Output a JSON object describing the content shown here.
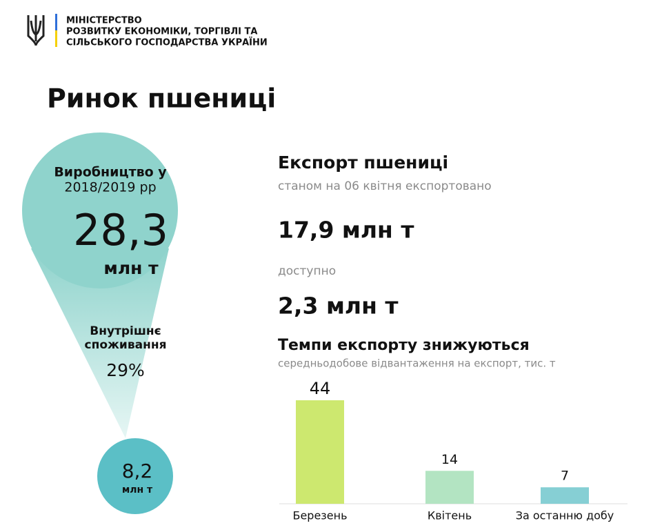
{
  "header": {
    "lines": [
      "МІНІСТЕРСТВО",
      "РОЗВИТКУ ЕКОНОМІКИ, ТОРГІВЛІ ТА",
      "СІЛЬСЬКОГО ГОСПОДАРСТВА УКРАЇНИ"
    ]
  },
  "title": "Ринок пшениці",
  "left": {
    "production_label": [
      "Виробництво у",
      "2018/2019 рр"
    ],
    "production_value": "28,3",
    "production_unit": "млн т",
    "consumption_label": [
      "Внутрішнє",
      "споживання"
    ],
    "consumption_share": "29%",
    "remainder_value": "8,2",
    "remainder_unit": "млн т"
  },
  "right": {
    "heading": "Експорт пшениці",
    "exported_label": "станом на 06 квітня експортовано",
    "exported_value": "17,9 млн т",
    "available_label": "доступно",
    "available_value": "2,3 млн т"
  },
  "chart_data": {
    "type": "bar",
    "title": "Темпи експорту знижуються",
    "subtitle": "середньодобове відвантаження на експорт, тис. т",
    "categories": [
      "Березень",
      "Квітень",
      "За останню добу"
    ],
    "values": [
      44,
      14,
      7
    ],
    "colors": [
      "#cde86f",
      "#b3e4c2",
      "#86cfd4"
    ]
  }
}
